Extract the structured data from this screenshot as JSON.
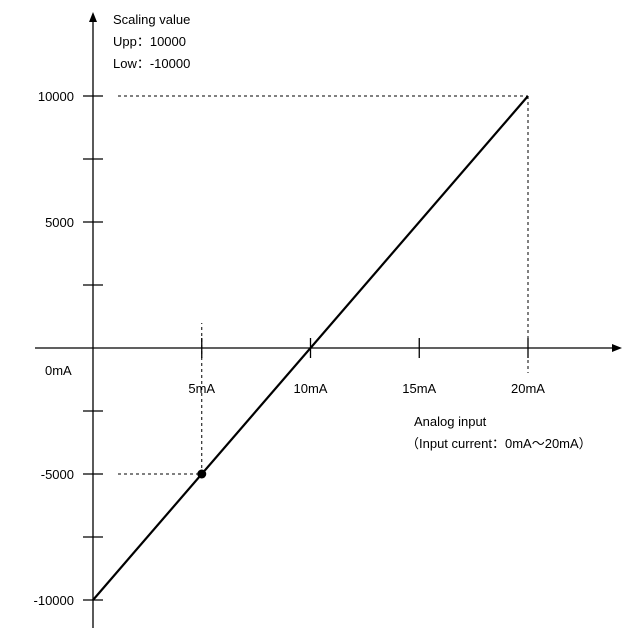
{
  "chart_data": {
    "type": "line",
    "ylabel_lines": [
      "Scaling value",
      "Upp：10000",
      "Low：-10000"
    ],
    "xlabel_lines": [
      "Analog input",
      "（Input current：0mA～20mA）"
    ],
    "x_origin_label": "0mA",
    "xlim": [
      0,
      20
    ],
    "ylim": [
      -10000,
      10000
    ],
    "x_ticks": [
      {
        "value": 5,
        "label": "5mA"
      },
      {
        "value": 10,
        "label": "10mA"
      },
      {
        "value": 15,
        "label": "15mA"
      },
      {
        "value": 20,
        "label": "20mA"
      }
    ],
    "y_ticks": [
      {
        "value": 10000,
        "label": "10000"
      },
      {
        "value": 7500,
        "label": ""
      },
      {
        "value": 5000,
        "label": "5000"
      },
      {
        "value": 2500,
        "label": ""
      },
      {
        "value": -2500,
        "label": ""
      },
      {
        "value": -5000,
        "label": "-5000"
      },
      {
        "value": -7500,
        "label": ""
      },
      {
        "value": -10000,
        "label": "-10000"
      }
    ],
    "series": [
      {
        "x": [
          0,
          20
        ],
        "y": [
          -10000,
          10000
        ]
      }
    ],
    "highlight_points": [
      {
        "x": 5,
        "y": -5000,
        "marker": "dot"
      },
      {
        "x": 20,
        "y": 10000,
        "marker": "none"
      }
    ],
    "grid": false
  }
}
